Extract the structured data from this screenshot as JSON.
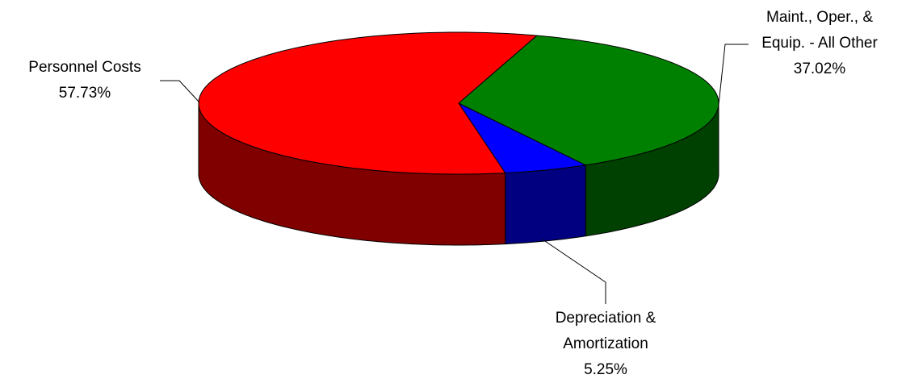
{
  "chart_data": {
    "type": "pie3d",
    "categories": [
      "Maint., Oper., & Equip. - All Other",
      "Depreciation & Amortization",
      "Personnel Costs"
    ],
    "values": [
      37.02,
      5.25,
      57.73
    ],
    "value_labels": [
      "37.02%",
      "5.25%",
      "57.73%"
    ],
    "colors": [
      "#008000",
      "#0000ff",
      "#ff0000"
    ],
    "side_colors": [
      "#004000",
      "#000080",
      "#800000"
    ]
  }
}
